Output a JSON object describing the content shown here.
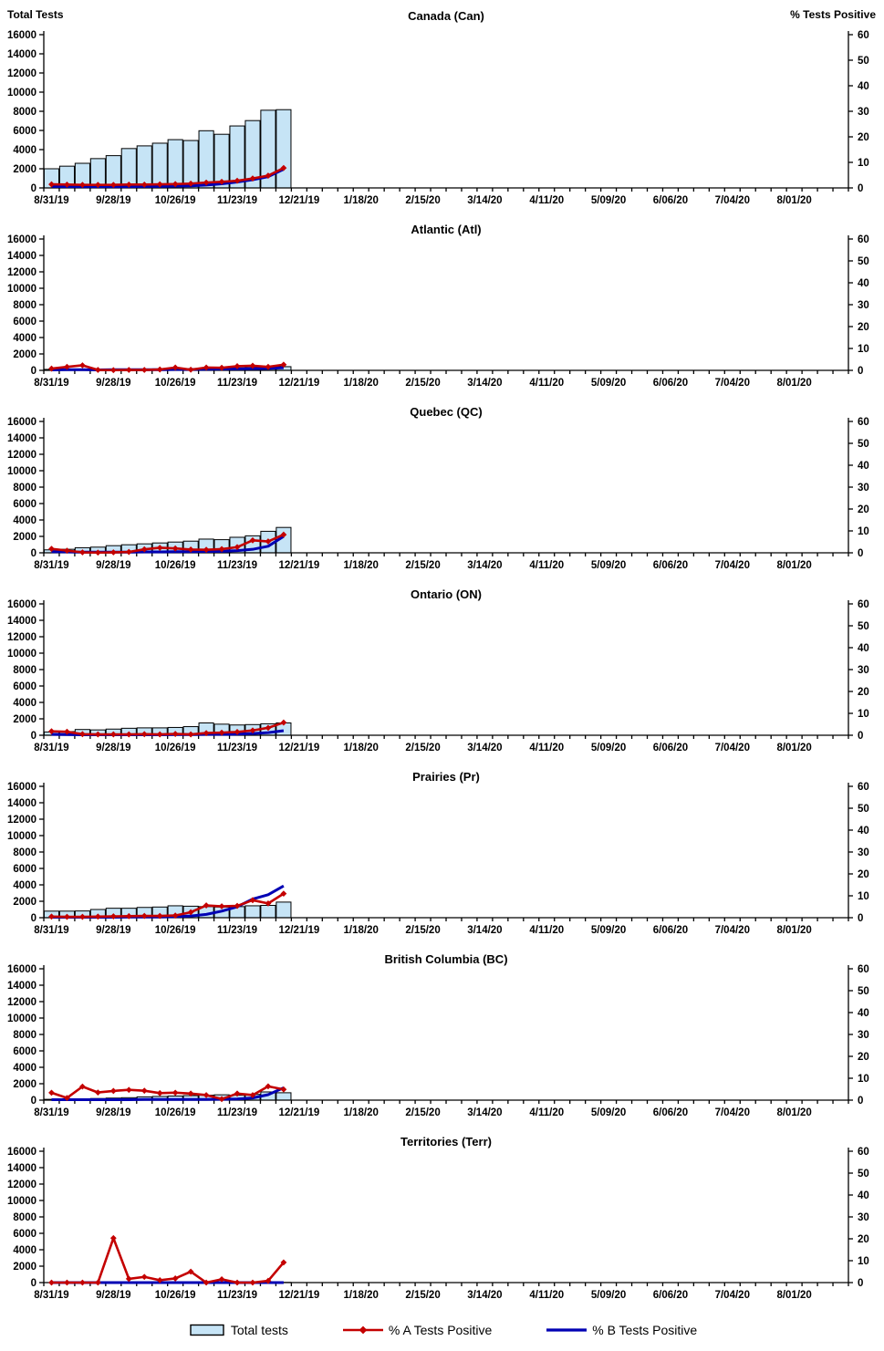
{
  "header": {
    "left_axis_title": "Total Tests",
    "right_axis_title": "% Tests Positive"
  },
  "colors": {
    "bar_fill": "#C6E4F6",
    "bar_border": "#000000",
    "series_a": "#C40000",
    "series_b": "#0000B4",
    "axis": "#000000"
  },
  "legend": {
    "items": [
      {
        "label": "Total tests",
        "type": "bar-swatch"
      },
      {
        "label": "% A Tests Positive",
        "type": "red-line-diamond"
      },
      {
        "label": "% B Tests Positive",
        "type": "blue-line"
      }
    ]
  },
  "chart_data": {
    "type": "bar",
    "subtype": "combo bar + 2 lines per panel",
    "x_tick_labels": [
      "8/31/19",
      "9/28/19",
      "10/26/19",
      "11/23/19",
      "12/21/19",
      "1/18/20",
      "2/15/20",
      "3/14/20",
      "4/11/20",
      "5/09/20",
      "6/06/20",
      "7/04/20",
      "8/01/20"
    ],
    "weeks_total": 52,
    "x_label_every_n_weeks": 4,
    "categories": [
      "8/31/19",
      "9/07/19",
      "9/14/19",
      "9/21/19",
      "9/28/19",
      "10/05/19",
      "10/12/19",
      "10/19/19",
      "10/26/19",
      "11/02/19",
      "11/09/19",
      "11/16/19",
      "11/23/19",
      "11/30/19",
      "12/07/19",
      "12/14/19"
    ],
    "left_axis": {
      "title": "Total Tests",
      "min": 0,
      "max": 16000,
      "step": 2000
    },
    "right_axis": {
      "title": "% Tests Positive",
      "min": 0,
      "max": 60,
      "step": 10
    },
    "legend_position": "bottom",
    "grid": false,
    "panels": [
      {
        "title": "Canada (Can)",
        "total_tests": [
          2000,
          2270,
          2570,
          3060,
          3370,
          4110,
          4390,
          4670,
          5040,
          4950,
          5970,
          5600,
          6470,
          7030,
          8110,
          8170
        ],
        "pct_a": [
          1.4,
          1.3,
          1.2,
          1.2,
          1.2,
          1.3,
          1.3,
          1.4,
          1.5,
          1.7,
          2.1,
          2.4,
          2.8,
          3.7,
          4.8,
          7.8
        ],
        "pct_b": [
          0.6,
          0.5,
          0.5,
          0.5,
          0.5,
          0.5,
          0.6,
          0.6,
          0.7,
          0.8,
          1.1,
          1.6,
          2.3,
          3.2,
          4.4,
          7.3
        ]
      },
      {
        "title": "Atlantic (Atl)",
        "total_tests": [
          120,
          150,
          150,
          120,
          120,
          150,
          150,
          180,
          220,
          200,
          250,
          280,
          300,
          330,
          400,
          450
        ],
        "pct_a": [
          0.8,
          1.6,
          2.3,
          0.2,
          0.1,
          0.2,
          0.2,
          0.4,
          1.3,
          0.3,
          1.3,
          1.2,
          1.9,
          2.1,
          1.6,
          2.6
        ],
        "pct_b": [
          0.2,
          0.3,
          0.3,
          0.2,
          0.3,
          0.3,
          0.3,
          0.3,
          0.4,
          0.4,
          0.5,
          0.6,
          0.7,
          0.8,
          0.9,
          1.2
        ]
      },
      {
        "title": "Quebec (QC)",
        "total_tests": [
          360,
          430,
          620,
          690,
          870,
          980,
          1090,
          1200,
          1310,
          1420,
          1670,
          1600,
          1890,
          2070,
          2620,
          3090
        ],
        "pct_a": [
          1.8,
          1.0,
          0.2,
          0.1,
          0.2,
          0.4,
          1.6,
          2.3,
          2.0,
          1.5,
          1.4,
          1.7,
          2.6,
          5.7,
          5.2,
          8.3
        ],
        "pct_b": [
          0.5,
          0.4,
          0.3,
          0.3,
          0.3,
          0.3,
          0.4,
          0.4,
          0.5,
          0.5,
          0.6,
          0.7,
          1.0,
          1.6,
          3.0,
          7.5
        ]
      },
      {
        "title": "Ontario (ON)",
        "total_tests": [
          400,
          450,
          700,
          650,
          750,
          850,
          900,
          900,
          950,
          1050,
          1500,
          1350,
          1250,
          1300,
          1400,
          1500
        ],
        "pct_a": [
          1.8,
          1.6,
          0.5,
          0.4,
          0.4,
          0.4,
          0.5,
          0.4,
          0.6,
          0.4,
          1.0,
          1.2,
          1.5,
          2.2,
          3.4,
          5.8
        ],
        "pct_b": [
          0.4,
          0.3,
          0.2,
          0.2,
          0.2,
          0.2,
          0.2,
          0.2,
          0.3,
          0.3,
          0.4,
          0.4,
          0.5,
          0.8,
          1.2,
          2.1
        ]
      },
      {
        "title": "Prairies (Pr)",
        "total_tests": [
          800,
          800,
          820,
          1000,
          1150,
          1150,
          1250,
          1300,
          1450,
          1400,
          1350,
          1300,
          1350,
          1450,
          1500,
          1900
        ],
        "pct_a": [
          0.5,
          0.4,
          0.4,
          0.5,
          0.6,
          0.7,
          0.8,
          0.8,
          1.0,
          2.5,
          5.6,
          5.2,
          5.4,
          8.0,
          6.5,
          11.0
        ],
        "pct_b": [
          0.2,
          0.2,
          0.2,
          0.2,
          0.2,
          0.3,
          0.3,
          0.3,
          0.5,
          0.8,
          1.5,
          3.0,
          5.0,
          8.5,
          10.5,
          14.5
        ]
      },
      {
        "title": "British Columbia (BC)",
        "total_tests": [
          100,
          120,
          150,
          200,
          250,
          300,
          400,
          450,
          500,
          550,
          600,
          650,
          600,
          700,
          1000,
          900
        ],
        "pct_a": [
          3.4,
          1.0,
          6.2,
          3.5,
          4.2,
          4.7,
          4.3,
          3.2,
          3.4,
          3.0,
          2.3,
          0.5,
          3.0,
          2.3,
          6.3,
          4.9
        ],
        "pct_b": [
          0.2,
          0.2,
          0.2,
          0.2,
          0.2,
          0.2,
          0.3,
          0.3,
          0.3,
          0.3,
          0.3,
          0.4,
          0.5,
          1.0,
          2.5,
          5.6
        ]
      },
      {
        "title": "Territories (Terr)",
        "total_tests": [
          0,
          0,
          0,
          0,
          5,
          5,
          5,
          5,
          10,
          10,
          10,
          10,
          15,
          15,
          20,
          25
        ],
        "pct_a": [
          0,
          0,
          0,
          0,
          20.3,
          1.7,
          2.6,
          1.1,
          1.9,
          5.0,
          0,
          1.5,
          0,
          0,
          0.8,
          9.2
        ],
        "pct_b": [
          0,
          0,
          0,
          0,
          0,
          0,
          0,
          0,
          0,
          0,
          0,
          0,
          0,
          0,
          0,
          0
        ]
      }
    ]
  }
}
